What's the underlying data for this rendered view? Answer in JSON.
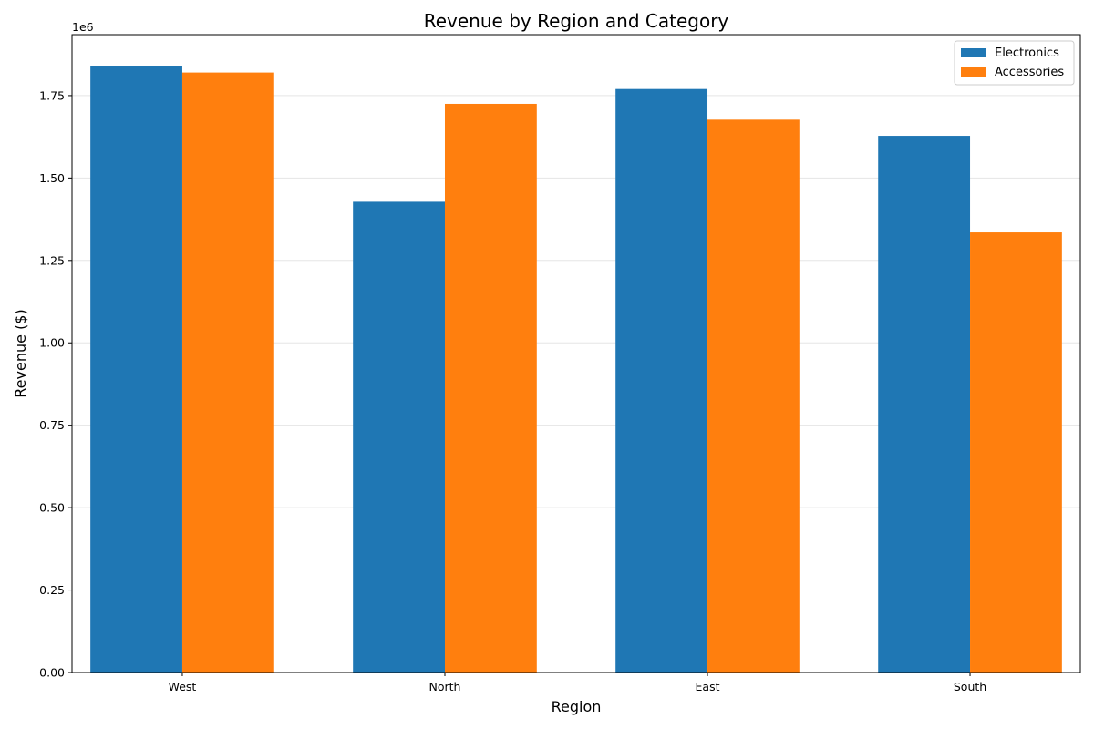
{
  "chart_data": {
    "type": "bar",
    "title": "Revenue by Region and Category",
    "xlabel": "Region",
    "ylabel": "Revenue ($)",
    "y_offset_label": "1e6",
    "categories": [
      "West",
      "North",
      "East",
      "South"
    ],
    "series": [
      {
        "name": "Electronics",
        "color": "#1f77b4",
        "values": [
          1841000,
          1428000,
          1770000,
          1628000
        ]
      },
      {
        "name": "Accessories",
        "color": "#ff7f0e",
        "values": [
          1820000,
          1725000,
          1677000,
          1335000
        ]
      }
    ],
    "ylim": [
      0,
      1935000
    ],
    "yticks": [
      0,
      250000,
      500000,
      750000,
      1000000,
      1250000,
      1500000,
      1750000
    ],
    "ytick_labels": [
      "0.00",
      "0.25",
      "0.50",
      "0.75",
      "1.00",
      "1.25",
      "1.50",
      "1.75"
    ],
    "grid": "y",
    "legend_position": "top-right"
  }
}
